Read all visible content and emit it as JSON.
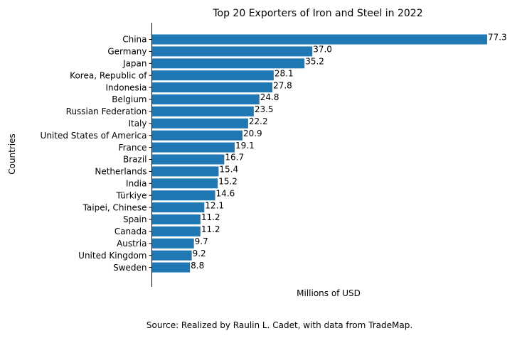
{
  "chart_data": {
    "type": "bar",
    "orientation": "horizontal",
    "title": "Top 20 Exporters of Iron and Steel in 2022",
    "xlabel": "Millions of USD",
    "ylabel": "Countries",
    "xlim": [
      0,
      77.3
    ],
    "show_x_ticks": false,
    "grid": false,
    "bar_color": "#1f77b4",
    "categories": [
      "China",
      "Germany",
      "Japan",
      "Korea, Republic of",
      "Indonesia",
      "Belgium",
      "Russian Federation",
      "Italy",
      "United States of America",
      "France",
      "Brazil",
      "Netherlands",
      "India",
      "Türkiye",
      "Taipei, Chinese",
      "Spain",
      "Canada",
      "Austria",
      "United Kingdom",
      "Sweden"
    ],
    "values": [
      77.3,
      37.0,
      35.2,
      28.1,
      27.8,
      24.8,
      23.5,
      22.2,
      20.9,
      19.1,
      16.7,
      15.4,
      15.2,
      14.6,
      12.1,
      11.2,
      11.2,
      9.7,
      9.2,
      8.8
    ],
    "value_labels": [
      "77.3",
      "37.0",
      "35.2",
      "28.1",
      "27.8",
      "24.8",
      "23.5",
      "22.2",
      "20.9",
      "19.1",
      "16.7",
      "15.4",
      "15.2",
      "14.6",
      "12.1",
      "11.2",
      "11.2",
      "9.7",
      "9.2",
      "8.8"
    ]
  },
  "source_note": "Source: Realized by Raulin L. Cadet, with data from TradeMap."
}
